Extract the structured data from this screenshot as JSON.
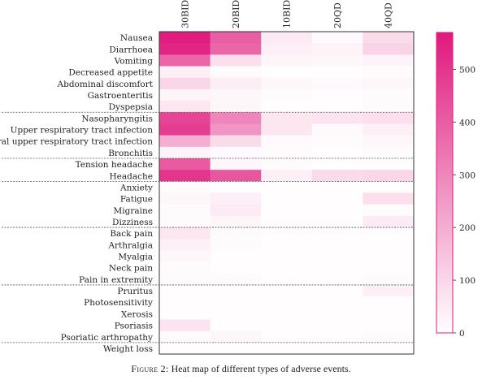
{
  "chart_data": {
    "type": "heatmap",
    "columns": [
      "30BID",
      "20BID",
      "10BID",
      "20QD",
      "40QD"
    ],
    "rows": [
      "Nausea",
      "Diarrhoea",
      "Vomiting",
      "Decreased appetite",
      "Abdominal discomfort",
      "Gastroenteritis",
      "Dyspepsia",
      "Nasopharyngitis",
      "Upper respiratory tract infection",
      "Viral upper respiratory tract infection",
      "Bronchitis",
      "Tension headache",
      "Headache",
      "Anxiety",
      "Fatigue",
      "Migraine",
      "Dizziness",
      "Back pain",
      "Arthralgia",
      "Myalgia",
      "Neck pain",
      "Pain in extremity",
      "Pruritus",
      "Photosensitivity",
      "Xerosis",
      "Psoriasis",
      "Psoriatic arthropathy",
      "Weight loss"
    ],
    "group_separators_after_row": [
      6,
      10,
      12,
      16,
      21,
      26
    ],
    "values": [
      [
        560,
        400,
        50,
        15,
        90
      ],
      [
        540,
        380,
        40,
        30,
        110
      ],
      [
        380,
        80,
        25,
        20,
        30
      ],
      [
        40,
        10,
        5,
        5,
        10
      ],
      [
        100,
        45,
        20,
        15,
        20
      ],
      [
        25,
        20,
        10,
        5,
        10
      ],
      [
        60,
        20,
        5,
        5,
        10
      ],
      [
        460,
        300,
        60,
        70,
        80
      ],
      [
        480,
        260,
        60,
        15,
        40
      ],
      [
        200,
        90,
        15,
        10,
        20
      ],
      [
        30,
        15,
        10,
        5,
        10
      ],
      [
        410,
        20,
        10,
        5,
        5
      ],
      [
        500,
        420,
        40,
        90,
        100
      ],
      [
        10,
        5,
        5,
        5,
        5
      ],
      [
        20,
        40,
        5,
        5,
        80
      ],
      [
        10,
        50,
        5,
        5,
        10
      ],
      [
        10,
        25,
        5,
        5,
        50
      ],
      [
        60,
        10,
        5,
        5,
        5
      ],
      [
        35,
        10,
        5,
        5,
        5
      ],
      [
        20,
        5,
        5,
        5,
        5
      ],
      [
        10,
        5,
        5,
        5,
        5
      ],
      [
        10,
        10,
        5,
        5,
        10
      ],
      [
        5,
        5,
        5,
        5,
        40
      ],
      [
        5,
        5,
        5,
        5,
        5
      ],
      [
        5,
        5,
        5,
        5,
        5
      ],
      [
        70,
        5,
        5,
        5,
        5
      ],
      [
        10,
        20,
        5,
        5,
        10
      ],
      [
        5,
        5,
        5,
        5,
        5
      ]
    ],
    "colorbar": {
      "min": 0,
      "max": 570,
      "ticks": [
        0,
        100,
        200,
        300,
        400,
        500
      ],
      "color_low": "#ffffff",
      "color_high": "#e0197d"
    }
  },
  "caption": {
    "figure_label": "Figure 2:",
    "text": " Heat map of different types of adverse events."
  }
}
